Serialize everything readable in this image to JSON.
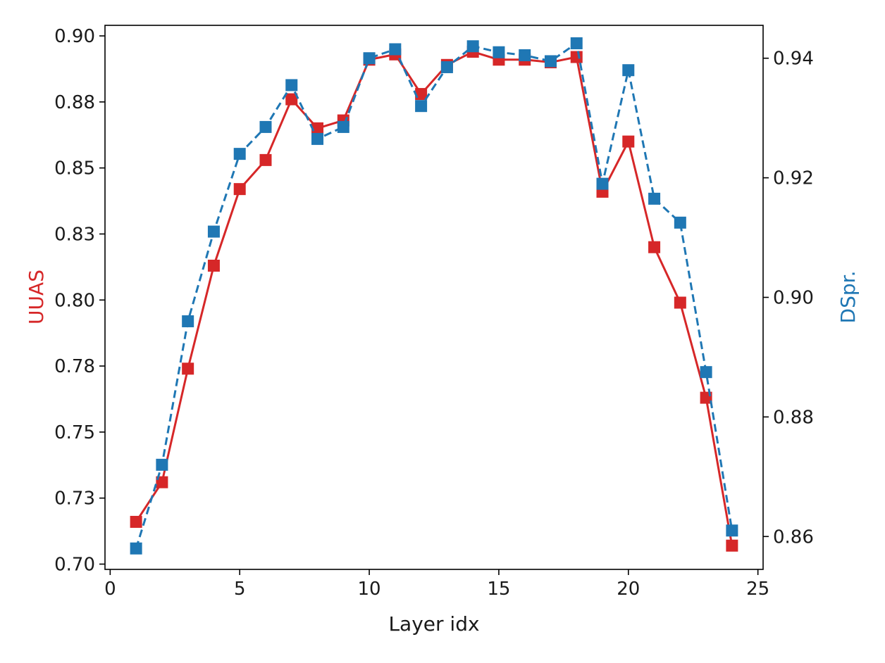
{
  "chart_data": {
    "type": "line",
    "title": "",
    "xlabel": "Layer idx",
    "ylabel_left": "UUAS",
    "ylabel_right": "DSpr.",
    "xlim": [
      -0.2,
      25.2
    ],
    "xticks": [
      0,
      5,
      10,
      15,
      20,
      25
    ],
    "ylim_left": [
      0.698,
      0.904
    ],
    "yticks_left": [
      0.7,
      0.725,
      0.75,
      0.775,
      0.8,
      0.825,
      0.85,
      0.875,
      0.9
    ],
    "ytick_labels_left": [
      "0.70",
      "0.73",
      "0.75",
      "0.78",
      "0.80",
      "0.83",
      "0.85",
      "0.88",
      "0.90"
    ],
    "ylim_right": [
      0.8545,
      0.9455
    ],
    "yticks_right": [
      0.86,
      0.88,
      0.9,
      0.92,
      0.94
    ],
    "ytick_labels_right": [
      "0.86",
      "0.88",
      "0.90",
      "0.92",
      "0.94"
    ],
    "grid": false,
    "legend": "none",
    "x": [
      1,
      2,
      3,
      4,
      5,
      6,
      7,
      8,
      9,
      10,
      11,
      12,
      13,
      14,
      15,
      16,
      17,
      18,
      19,
      20,
      21,
      22,
      23,
      24
    ],
    "series": [
      {
        "axis": "left",
        "color": "#d62728",
        "line_style": "solid",
        "marker": "square",
        "values": [
          0.716,
          0.731,
          0.774,
          0.813,
          0.842,
          0.853,
          0.876,
          0.865,
          0.868,
          0.891,
          0.893,
          0.878,
          0.889,
          0.894,
          0.891,
          0.891,
          0.89,
          0.892,
          0.841,
          0.86,
          0.82,
          0.799,
          0.763,
          0.707
        ]
      },
      {
        "axis": "right",
        "color": "#1f77b4",
        "line_style": "dashed",
        "marker": "square",
        "values": [
          0.858,
          0.872,
          0.896,
          0.911,
          0.924,
          0.9285,
          0.9355,
          0.9265,
          0.9285,
          0.94,
          0.9415,
          0.932,
          0.9385,
          0.942,
          0.941,
          0.9405,
          0.9395,
          0.9425,
          0.919,
          0.938,
          0.9165,
          0.9125,
          0.8875,
          0.861
        ]
      }
    ]
  }
}
